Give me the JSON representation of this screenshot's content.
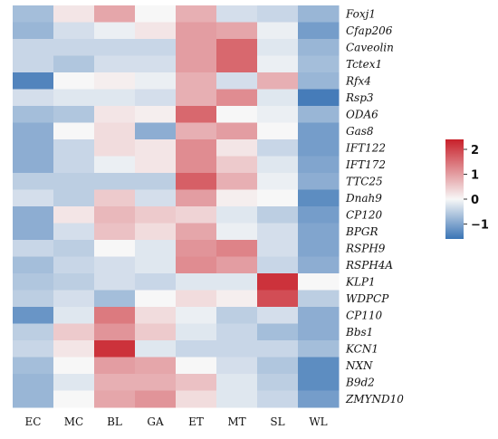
{
  "chart_data": {
    "type": "heatmap",
    "title": "",
    "xlabel": "",
    "ylabel": "",
    "columns": [
      "EC",
      "MC",
      "BL",
      "GA",
      "ET",
      "MT",
      "SL",
      "WL"
    ],
    "rows": [
      "Foxj1",
      "Cfap206",
      "Caveolin",
      "Tctex1",
      "Rfx4",
      "Rsp3",
      "ODA6",
      "Gas8",
      "IFT122",
      "IFT172",
      "TTC25",
      "Dnah9",
      "CP120",
      "BPGR",
      "RSPH9",
      "RSPH4A",
      "KLP1",
      "WDPCP",
      "CP110",
      "Bbs1",
      "KCN1",
      "NXN",
      "B9d2",
      "ZMYND10"
    ],
    "values": [
      [
        -0.7,
        0.2,
        0.9,
        0.0,
        0.8,
        -0.3,
        -0.4,
        -0.8
      ],
      [
        -0.8,
        -0.3,
        -0.1,
        0.2,
        1.0,
        0.9,
        -0.1,
        -1.1
      ],
      [
        -0.4,
        -0.4,
        -0.4,
        -0.4,
        1.0,
        1.6,
        -0.2,
        -0.8
      ],
      [
        -0.4,
        -0.6,
        -0.3,
        -0.3,
        1.0,
        1.6,
        -0.1,
        -0.7
      ],
      [
        -1.4,
        0.0,
        0.1,
        -0.1,
        0.8,
        -0.3,
        0.8,
        -0.8
      ],
      [
        -0.3,
        -0.2,
        -0.2,
        -0.3,
        0.8,
        1.2,
        -0.2,
        -1.5
      ],
      [
        -0.7,
        -0.6,
        0.2,
        0.1,
        1.6,
        0.0,
        -0.1,
        -0.8
      ],
      [
        -0.9,
        0.0,
        0.3,
        -0.9,
        0.8,
        1.0,
        0.0,
        -1.1
      ],
      [
        -0.9,
        -0.4,
        0.3,
        0.2,
        1.2,
        0.2,
        -0.4,
        -1.1
      ],
      [
        -0.9,
        -0.4,
        -0.1,
        0.2,
        1.2,
        0.5,
        -0.2,
        -1.0
      ],
      [
        -0.5,
        -0.5,
        -0.5,
        -0.5,
        1.7,
        0.8,
        -0.1,
        -0.9
      ],
      [
        -0.3,
        -0.5,
        0.5,
        -0.3,
        1.0,
        0.1,
        0.0,
        -1.3
      ],
      [
        -0.9,
        0.2,
        0.7,
        0.5,
        0.4,
        -0.2,
        -0.5,
        -1.1
      ],
      [
        -0.9,
        -0.3,
        0.6,
        0.3,
        0.9,
        -0.1,
        -0.3,
        -1.0
      ],
      [
        -0.4,
        -0.5,
        0.0,
        -0.2,
        1.1,
        1.3,
        -0.3,
        -1.0
      ],
      [
        -0.7,
        -0.4,
        -0.3,
        -0.2,
        1.2,
        1.0,
        -0.4,
        -0.9
      ],
      [
        -0.6,
        -0.5,
        -0.3,
        -0.4,
        -0.2,
        -0.2,
        2.2,
        0.0
      ],
      [
        -0.5,
        -0.3,
        -0.7,
        0.0,
        0.3,
        0.1,
        1.9,
        -0.5
      ],
      [
        -1.2,
        -0.2,
        1.4,
        0.3,
        -0.1,
        -0.5,
        -0.3,
        -0.9
      ],
      [
        -0.5,
        0.5,
        1.1,
        0.5,
        -0.2,
        -0.4,
        -0.7,
        -0.9
      ],
      [
        -0.4,
        0.2,
        2.2,
        -0.2,
        -0.4,
        -0.4,
        -0.4,
        -0.7
      ],
      [
        -0.7,
        0.0,
        1.0,
        0.9,
        0.0,
        -0.3,
        -0.6,
        -1.3
      ],
      [
        -0.8,
        -0.2,
        0.8,
        0.8,
        0.6,
        -0.2,
        -0.5,
        -1.3
      ],
      [
        -0.8,
        0.0,
        0.9,
        1.1,
        0.3,
        -0.2,
        -0.4,
        -1.1
      ]
    ],
    "colorbar": {
      "ticks": [
        2,
        1,
        0,
        -1
      ],
      "tick_labels": [
        "2",
        "1",
        "0",
        "−1"
      ],
      "range": [
        -1.6,
        2.4
      ]
    },
    "colors": {
      "low": "#3a74b5",
      "mid": "#f7f7f7",
      "high": "#c8202a"
    },
    "legend_placement": "right"
  }
}
